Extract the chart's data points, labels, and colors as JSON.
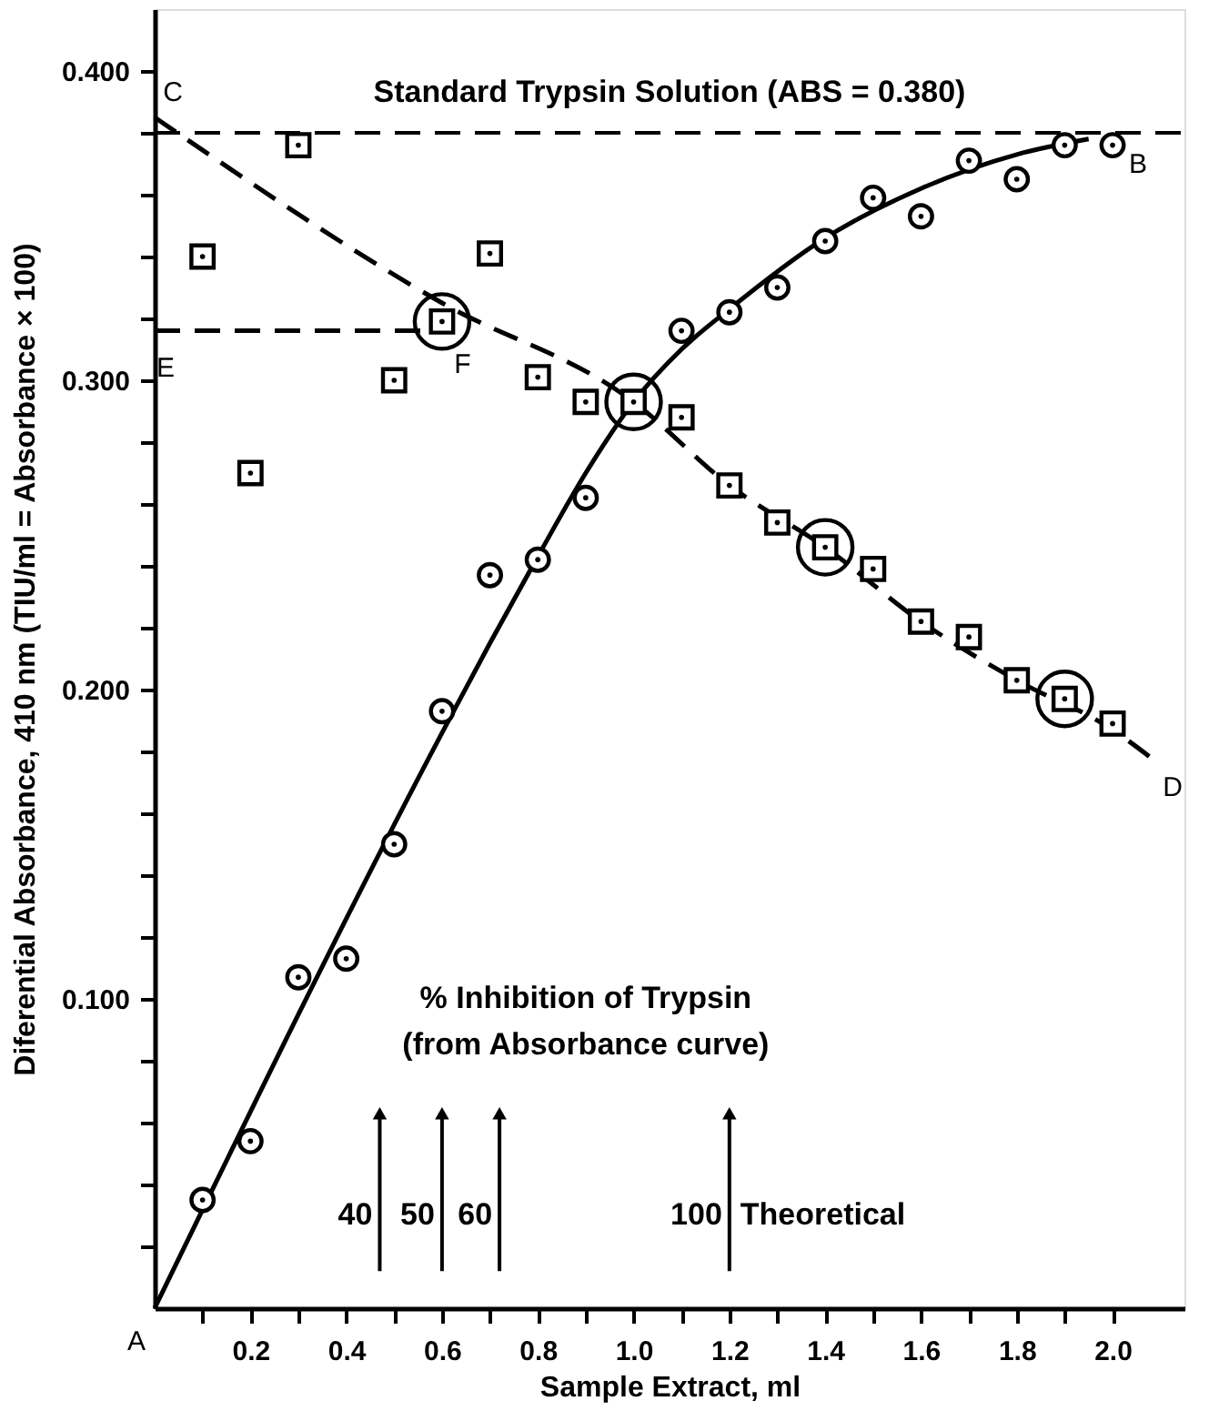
{
  "chart_data": {
    "type": "scatter",
    "xlabel": "Sample Extract, ml",
    "ylabel": "Diferential Absorbance, 410 nm    (TIU/ml = Absorbance × 100)",
    "xlim": [
      0,
      2.15
    ],
    "ylim": [
      0,
      0.42
    ],
    "xticks": [
      {
        "value": 0.1,
        "label": null
      },
      {
        "value": 0.2,
        "label": "0.2"
      },
      {
        "value": 0.3,
        "label": null
      },
      {
        "value": 0.4,
        "label": "0.4"
      },
      {
        "value": 0.5,
        "label": null
      },
      {
        "value": 0.6,
        "label": "0.6"
      },
      {
        "value": 0.7,
        "label": null
      },
      {
        "value": 0.8,
        "label": "0.8"
      },
      {
        "value": 0.9,
        "label": null
      },
      {
        "value": 1.0,
        "label": "1.0"
      },
      {
        "value": 1.1,
        "label": null
      },
      {
        "value": 1.2,
        "label": "1.2"
      },
      {
        "value": 1.3,
        "label": null
      },
      {
        "value": 1.4,
        "label": "1.4"
      },
      {
        "value": 1.5,
        "label": null
      },
      {
        "value": 1.6,
        "label": "1.6"
      },
      {
        "value": 1.7,
        "label": null
      },
      {
        "value": 1.8,
        "label": "1.8"
      },
      {
        "value": 1.9,
        "label": null
      },
      {
        "value": 2.0,
        "label": "2.0"
      }
    ],
    "yticks": [
      {
        "value": 0.02,
        "label": null
      },
      {
        "value": 0.04,
        "label": null
      },
      {
        "value": 0.06,
        "label": null
      },
      {
        "value": 0.08,
        "label": null
      },
      {
        "value": 0.1,
        "label": "0.100"
      },
      {
        "value": 0.12,
        "label": null
      },
      {
        "value": 0.14,
        "label": null
      },
      {
        "value": 0.16,
        "label": null
      },
      {
        "value": 0.18,
        "label": null
      },
      {
        "value": 0.2,
        "label": "0.200"
      },
      {
        "value": 0.22,
        "label": null
      },
      {
        "value": 0.24,
        "label": null
      },
      {
        "value": 0.26,
        "label": null
      },
      {
        "value": 0.28,
        "label": null
      },
      {
        "value": 0.3,
        "label": "0.300"
      },
      {
        "value": 0.32,
        "label": null
      },
      {
        "value": 0.34,
        "label": null
      },
      {
        "value": 0.36,
        "label": null
      },
      {
        "value": 0.38,
        "label": null
      },
      {
        "value": 0.4,
        "label": "0.400"
      }
    ],
    "grid": false,
    "series": [
      {
        "type": "scatter",
        "marker": "circle",
        "color": "#000000",
        "x": [
          0.1,
          0.2,
          0.3,
          0.4,
          0.5,
          0.6,
          0.7,
          0.8,
          0.9,
          1.1,
          1.2,
          1.3,
          1.4,
          1.5,
          1.6,
          1.7,
          1.8,
          1.9,
          2.0
        ],
        "values": [
          0.035,
          0.054,
          0.107,
          0.113,
          0.15,
          0.193,
          0.237,
          0.242,
          0.262,
          0.316,
          0.322,
          0.33,
          0.345,
          0.359,
          0.353,
          0.371,
          0.365,
          0.376,
          0.376
        ]
      },
      {
        "type": "scatter",
        "marker": "square",
        "color": "#000000",
        "x": [
          0.1,
          0.2,
          0.3,
          0.5,
          0.6,
          0.7,
          0.8,
          0.9,
          1.0,
          1.1,
          1.2,
          1.3,
          1.4,
          1.5,
          1.6,
          1.7,
          1.8,
          1.9,
          2.0
        ],
        "values": [
          0.34,
          0.27,
          0.376,
          0.3,
          0.319,
          0.341,
          0.301,
          0.293,
          0.293,
          0.288,
          0.266,
          0.254,
          0.246,
          0.239,
          0.222,
          0.217,
          0.203,
          0.197,
          0.189
        ]
      },
      {
        "type": "bubble",
        "color": "#000000",
        "x": [
          0.6,
          1.0,
          1.4,
          1.9
        ],
        "values": [
          0.319,
          0.293,
          0.246,
          0.197
        ],
        "sizes": [
          1,
          1,
          1,
          1
        ]
      },
      {
        "type": "line",
        "line_style": "solid",
        "marker": "none",
        "color": "#000000",
        "x": [
          0,
          0.6,
          0.7,
          0.8,
          0.9,
          1.0,
          1.1,
          1.2,
          1.4,
          1.6,
          1.8,
          1.95
        ],
        "values": [
          0,
          0.186,
          0.215,
          0.243,
          0.27,
          0.293,
          0.31,
          0.323,
          0.346,
          0.362,
          0.373,
          0.378
        ]
      },
      {
        "type": "line",
        "line_style": "dashed",
        "marker": "none",
        "color": "#000000",
        "x": [
          0,
          0.6,
          1.0,
          1.2,
          1.4,
          1.6,
          1.8,
          2.0,
          2.08
        ],
        "values": [
          0.385,
          0.325,
          0.293,
          0.266,
          0.246,
          0.222,
          0.203,
          0.187,
          0.178
        ]
      },
      {
        "type": "line",
        "line_style": "dashed",
        "marker": "none",
        "color": "#000000",
        "x": [
          0,
          0.6
        ],
        "values": [
          0.316,
          0.316
        ]
      }
    ],
    "ref_lines": [
      {
        "axis": "y",
        "value": 0.38,
        "label": "Standard Trypsin Solution (ABS = 0.380)",
        "line_style": "dashed",
        "color": "#000000"
      }
    ],
    "annotations": [
      "40",
      "50",
      "60",
      "100",
      "Theoretical",
      "% Inhibition of Trypsin",
      "(from Absorbance curve)",
      {
        "text": "A",
        "x": 0,
        "y": 0
      },
      {
        "text": "B",
        "x": 2.0,
        "y": 0.376
      },
      {
        "text": "C",
        "x": 0,
        "y": 0.385
      },
      {
        "text": "D",
        "x": 2.08,
        "y": 0.178
      },
      {
        "text": "E",
        "x": 0,
        "y": 0.316
      },
      {
        "text": "F",
        "x": 0.62,
        "y": 0.316
      }
    ]
  }
}
